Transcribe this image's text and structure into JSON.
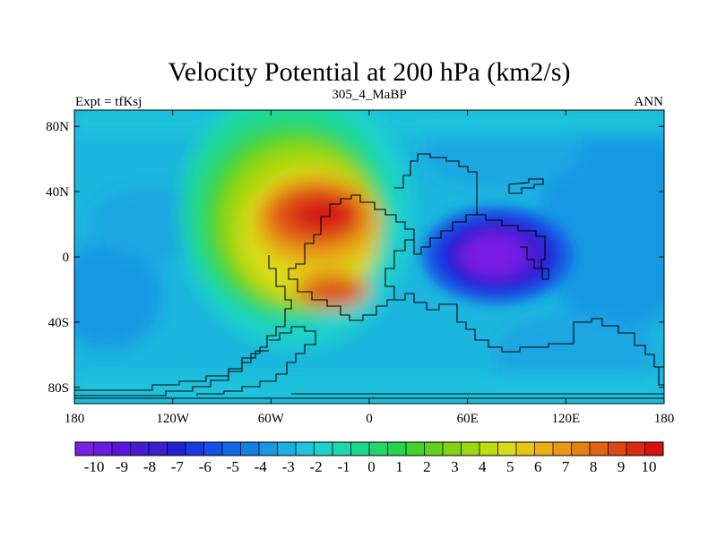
{
  "chart_data": {
    "type": "heatmap",
    "title": "Velocity Potential at 200 hPa (km2/s)",
    "left_string": "Expt = tfKsj",
    "center_string": "305_4_MaBP",
    "right_string": "ANN",
    "x_ticks": [
      "180",
      "120W",
      "60W",
      "0",
      "60E",
      "120E",
      "180"
    ],
    "x_tick_values": [
      -180,
      -120,
      -60,
      0,
      60,
      120,
      180
    ],
    "y_ticks": [
      "80N",
      "40N",
      "0",
      "40S",
      "80S"
    ],
    "y_tick_values": [
      80,
      40,
      0,
      -40,
      -80
    ],
    "xlim": [
      -180,
      180
    ],
    "ylim": [
      -90,
      90
    ],
    "colorbar_labels": [
      "-10",
      "-9",
      "-8",
      "-7",
      "-6",
      "-5",
      "-4",
      "-3",
      "-2",
      "-1",
      "0",
      "1",
      "2",
      "3",
      "4",
      "5",
      "6",
      "7",
      "8",
      "9",
      "10"
    ],
    "colorbar_colors": [
      "#7a1fe6",
      "#6a1be0",
      "#5a17d8",
      "#4a1ad2",
      "#3a1ed0",
      "#2020d8",
      "#1a3ae0",
      "#1650e4",
      "#1468e6",
      "#1280e6",
      "#1898e4",
      "#1cb0e0",
      "#1ec4dc",
      "#1ed2cc",
      "#1ed8b0",
      "#1ed890",
      "#20d66e",
      "#24d44c",
      "#40d42a",
      "#60d21c",
      "#80d414",
      "#a0d610",
      "#c0da14",
      "#d8dc16",
      "#e6c814",
      "#e8b012",
      "#e89812",
      "#e48012",
      "#e06412",
      "#dc4812",
      "#d82c12",
      "#d41212"
    ],
    "features": [
      {
        "name": "positive maximum",
        "lon": -35,
        "lat": 22,
        "value": 9.5
      },
      {
        "name": "negative minimum",
        "lon": 75,
        "lat": 0,
        "value": -9.5
      },
      {
        "name": "secondary positive lobe",
        "lon": -20,
        "lat": -25,
        "value": 7
      }
    ],
    "units": "km2/s"
  }
}
